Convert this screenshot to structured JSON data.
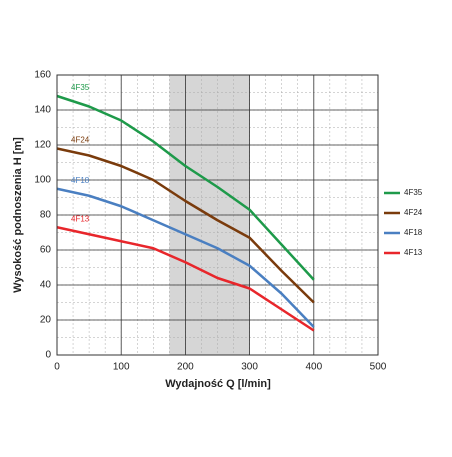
{
  "chart_data": {
    "type": "line",
    "xlabel": "Wydajność Q [l/min]",
    "ylabel": "Wysokość podnoszenia H [m]",
    "x": [
      0,
      50,
      100,
      150,
      200,
      250,
      300,
      350,
      400
    ],
    "series": [
      {
        "name": "4F35",
        "color": "#1e9a4a",
        "values": [
          148,
          142,
          134,
          122,
          108,
          96,
          83,
          63,
          43
        ]
      },
      {
        "name": "4F24",
        "color": "#7a3b0c",
        "values": [
          118,
          114,
          108,
          100,
          88,
          77,
          67,
          48,
          30
        ]
      },
      {
        "name": "4F18",
        "color": "#4a7fc1",
        "values": [
          95,
          91,
          85,
          77,
          69,
          61,
          51,
          35,
          16
        ]
      },
      {
        "name": "4F13",
        "color": "#e8262b",
        "values": [
          73,
          69,
          65,
          61,
          53,
          44,
          38,
          26,
          14
        ]
      }
    ],
    "xlim": [
      0,
      500
    ],
    "xticks": [
      0,
      100,
      200,
      300,
      400,
      500
    ],
    "ylim": [
      0,
      160
    ],
    "yticks": [
      0,
      20,
      40,
      60,
      80,
      100,
      120,
      140,
      160
    ],
    "grid": true,
    "x_minor_step": 25,
    "y_minor_step": 10,
    "shaded_xrange": [
      175,
      300
    ],
    "legend": "right"
  }
}
